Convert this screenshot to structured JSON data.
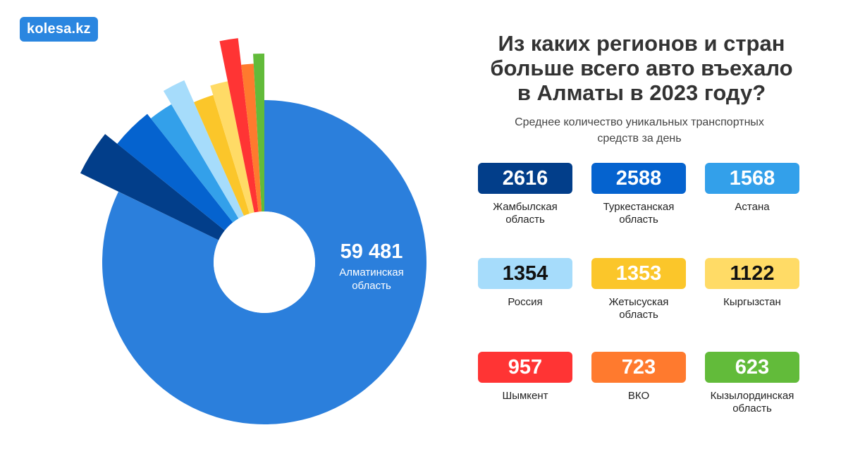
{
  "logo": {
    "text": "kolesa.kz"
  },
  "header": {
    "title_lines": [
      "Из каких регионов и стран",
      "больше всего авто въехало",
      "в Алматы в 2023 году?"
    ],
    "subtitle_lines": [
      "Среднее количество уникальных транспортных",
      "средств за день"
    ]
  },
  "chart_data": {
    "type": "donut",
    "title": "Из каких регионов и стран больше всего авто въехало в Алматы в 2023 году?",
    "subtitle": "Среднее количество уникальных транспортных средств за день",
    "main_value_text": "59 481",
    "main_label_lines": [
      "Алматинская",
      "область"
    ],
    "series": [
      {
        "name": "Алматинская область",
        "value": 59481,
        "color": "#2b7fdc"
      },
      {
        "name": "Жамбылская область",
        "value": 2616,
        "color": "#023e8a"
      },
      {
        "name": "Туркестанская область",
        "value": 2588,
        "color": "#0563cf"
      },
      {
        "name": "Астана",
        "value": 1568,
        "color": "#33a0ea"
      },
      {
        "name": "Россия",
        "value": 1354,
        "color": "#a6dcfb"
      },
      {
        "name": "Жетысуская область",
        "value": 1353,
        "color": "#fbc62a"
      },
      {
        "name": "Кыргызстан",
        "value": 1122,
        "color": "#ffdb66"
      },
      {
        "name": "Шымкент",
        "value": 957,
        "color": "#ff3434"
      },
      {
        "name": "ВКО",
        "value": 723,
        "color": "#ff7a2e"
      },
      {
        "name": "Кызылординская область",
        "value": 623,
        "color": "#62bb3a"
      }
    ]
  },
  "cards": [
    {
      "value": "2616",
      "label_lines": [
        "Жамбылская",
        "область"
      ],
      "bg": "#023e8a",
      "fg": "#ffffff"
    },
    {
      "value": "2588",
      "label_lines": [
        "Туркестанская",
        "область"
      ],
      "bg": "#0563cf",
      "fg": "#ffffff"
    },
    {
      "value": "1568",
      "label_lines": [
        "Астана"
      ],
      "bg": "#33a0ea",
      "fg": "#ffffff"
    },
    {
      "value": "1354",
      "label_lines": [
        "Россия"
      ],
      "bg": "#a6dcfb",
      "fg": "#111111"
    },
    {
      "value": "1353",
      "label_lines": [
        "Жетысуская",
        "область"
      ],
      "bg": "#fbc62a",
      "fg": "#ffffff"
    },
    {
      "value": "1122",
      "label_lines": [
        "Кыргызстан"
      ],
      "bg": "#ffdb66",
      "fg": "#111111"
    },
    {
      "value": "957",
      "label_lines": [
        "Шымкент"
      ],
      "bg": "#ff3434",
      "fg": "#ffffff"
    },
    {
      "value": "723",
      "label_lines": [
        "ВКО"
      ],
      "bg": "#ff7a2e",
      "fg": "#ffffff"
    },
    {
      "value": "623",
      "label_lines": [
        "Кызылординская",
        "область"
      ],
      "bg": "#62bb3a",
      "fg": "#ffffff"
    }
  ]
}
